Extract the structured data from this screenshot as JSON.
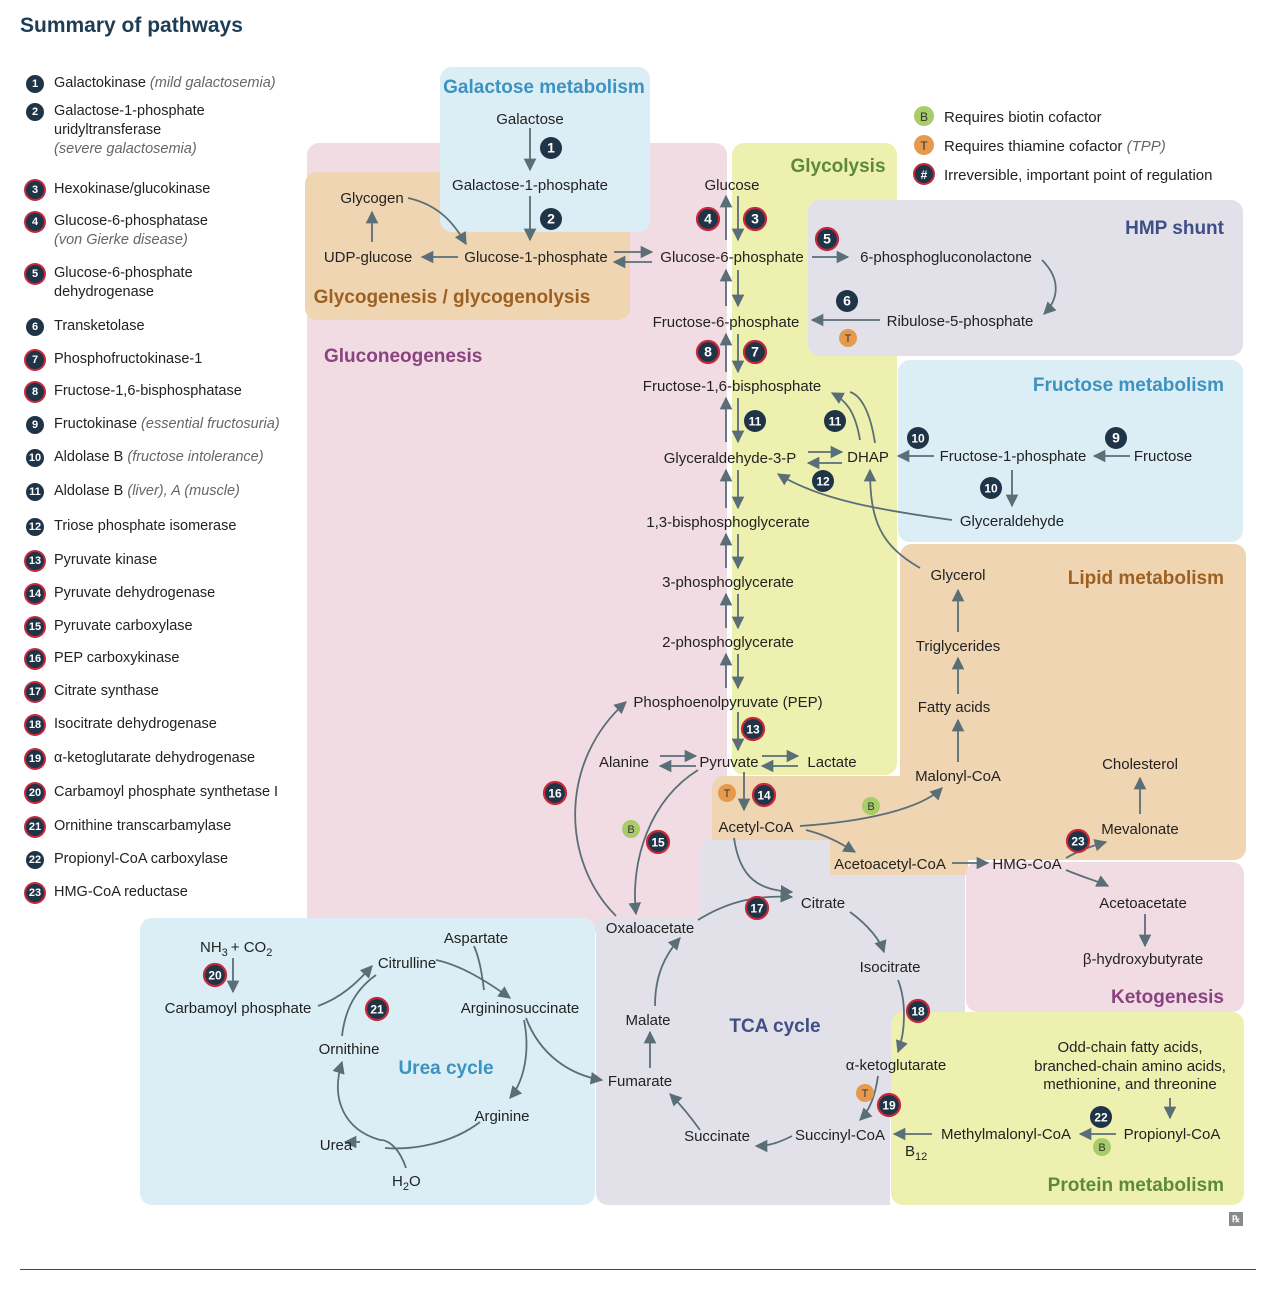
{
  "title": "Summary of pathways",
  "legend_items": [
    {
      "n": "1",
      "text": "Galactokinase",
      "note": "(mild galactosemia)",
      "red": false
    },
    {
      "n": "2",
      "text": "Galactose-1-phosphate uridyltransferase",
      "note": "(severe galactosemia)",
      "red": false
    },
    {
      "n": "3",
      "text": "Hexokinase/glucokinase",
      "note": "",
      "red": true
    },
    {
      "n": "4",
      "text": "Glucose-6-phosphatase",
      "note": "(von Gierke disease)",
      "red": true
    },
    {
      "n": "5",
      "text": "Glucose-6-phosphate dehydrogenase",
      "note": "",
      "red": true
    },
    {
      "n": "6",
      "text": "Transketolase",
      "note": "",
      "red": false
    },
    {
      "n": "7",
      "text": "Phosphofructokinase-1",
      "note": "",
      "red": true
    },
    {
      "n": "8",
      "text": "Fructose-1,6-bisphosphatase",
      "note": "",
      "red": true
    },
    {
      "n": "9",
      "text": "Fructokinase",
      "note": "(essential fructosuria)",
      "red": false
    },
    {
      "n": "10",
      "text": "Aldolase B",
      "note": "(fructose intolerance)",
      "red": false
    },
    {
      "n": "11",
      "text": "Aldolase B",
      "note": "(liver), A (muscle)",
      "red": false
    },
    {
      "n": "12",
      "text": "Triose phosphate isomerase",
      "note": "",
      "red": false
    },
    {
      "n": "13",
      "text": "Pyruvate kinase",
      "note": "",
      "red": true
    },
    {
      "n": "14",
      "text": "Pyruvate dehydrogenase",
      "note": "",
      "red": true
    },
    {
      "n": "15",
      "text": "Pyruvate carboxylase",
      "note": "",
      "red": true
    },
    {
      "n": "16",
      "text": "PEP carboxykinase",
      "note": "",
      "red": true
    },
    {
      "n": "17",
      "text": "Citrate synthase",
      "note": "",
      "red": true
    },
    {
      "n": "18",
      "text": "Isocitrate dehydrogenase",
      "note": "",
      "red": true
    },
    {
      "n": "19",
      "text": "α-ketoglutarate dehydrogenase",
      "note": "",
      "red": true
    },
    {
      "n": "20",
      "text": "Carbamoyl phosphate synthetase I",
      "note": "",
      "red": true
    },
    {
      "n": "21",
      "text": "Ornithine transcarbamylase",
      "note": "",
      "red": true
    },
    {
      "n": "22",
      "text": "Propionyl-CoA carboxylase",
      "note": "",
      "red": false
    },
    {
      "n": "23",
      "text": "HMG-CoA reductase",
      "note": "",
      "red": true
    }
  ],
  "key": {
    "biotin": "Requires biotin cofactor",
    "thiamine": "Requires thiamine cofactor",
    "thiamine_note": "(TPP)",
    "irreversible": "Irreversible, important point of regulation",
    "b_symbol": "B",
    "t_symbol": "T",
    "hash_symbol": "#"
  },
  "regions": {
    "galactose": "Galactose metabolism",
    "glycolysis": "Glycolysis",
    "hmp": "HMP shunt",
    "glycogen": "Glycogenesis / glycogenolysis",
    "gluconeogenesis": "Gluconeogenesis",
    "fructose": "Fructose metabolism",
    "lipid": "Lipid metabolism",
    "tca": "TCA cycle",
    "urea": "Urea cycle",
    "ketogenesis": "Ketogenesis",
    "protein": "Protein metabolism"
  },
  "metabolites": {
    "galactose": "Galactose",
    "gal1p_top": "Galactose-1-phosphate",
    "glucose1p": "Glucose-1-phosphate",
    "glycogen": "Glycogen",
    "udp_glucose": "UDP-glucose",
    "glucose": "Glucose",
    "g6p": "Glucose-6-phosphate",
    "pgl": "6-phosphogluconolactone",
    "ru5p": "Ribulose-5-phosphate",
    "f6p": "Fructose-6-phosphate",
    "f16bp": "Fructose-1,6-bisphosphate",
    "g3p": "Glyceraldehyde-3-P",
    "dhap": "DHAP",
    "f1p": "Fructose-1-phosphate",
    "fructose": "Fructose",
    "glyceraldehyde": "Glyceraldehyde",
    "bpg": "1,3-bisphosphoglycerate",
    "pg3": "3-phosphoglycerate",
    "pg2": "2-phosphoglycerate",
    "pep": "Phosphoenolpyruvate (PEP)",
    "alanine": "Alanine",
    "pyruvate": "Pyruvate",
    "lactate": "Lactate",
    "glycerol": "Glycerol",
    "triglycerides": "Triglycerides",
    "fatty_acids": "Fatty acids",
    "malonyl": "Malonyl-CoA",
    "cholesterol": "Cholesterol",
    "mevalonate": "Mevalonate",
    "acetyl": "Acetyl-CoA",
    "acetoacetyl": "Acetoacetyl-CoA",
    "hmg": "HMG-CoA",
    "acetoacetate": "Acetoacetate",
    "bhb": "β-hydroxybutyrate",
    "oxaloacetate": "Oxaloacetate",
    "citrate": "Citrate",
    "isocitrate": "Isocitrate",
    "akg": "α-ketoglutarate",
    "succinyl": "Succinyl-CoA",
    "succinate": "Succinate",
    "fumarate": "Fumarate",
    "malate": "Malate",
    "nh3": "NH",
    "nh3_sub": "3",
    "co2": "+ CO",
    "co2_sub": "2",
    "carbamoyl": "Carbamoyl phosphate",
    "citrulline": "Citrulline",
    "aspartate": "Aspartate",
    "argininosuccinate": "Argininosuccinate",
    "ornithine": "Ornithine",
    "arginine": "Arginine",
    "urea": "Urea",
    "h2o_h": "H",
    "h2o_sub": "2",
    "h2o_o": "O",
    "odd_chain_1": "Odd-chain fatty acids,",
    "odd_chain_2": "branched-chain amino acids,",
    "odd_chain_3": "methionine, and threonine",
    "propionyl": "Propionyl-CoA",
    "methylmalonyl": "Methylmalonyl-CoA",
    "b12": "B",
    "b12_sub": "12"
  }
}
